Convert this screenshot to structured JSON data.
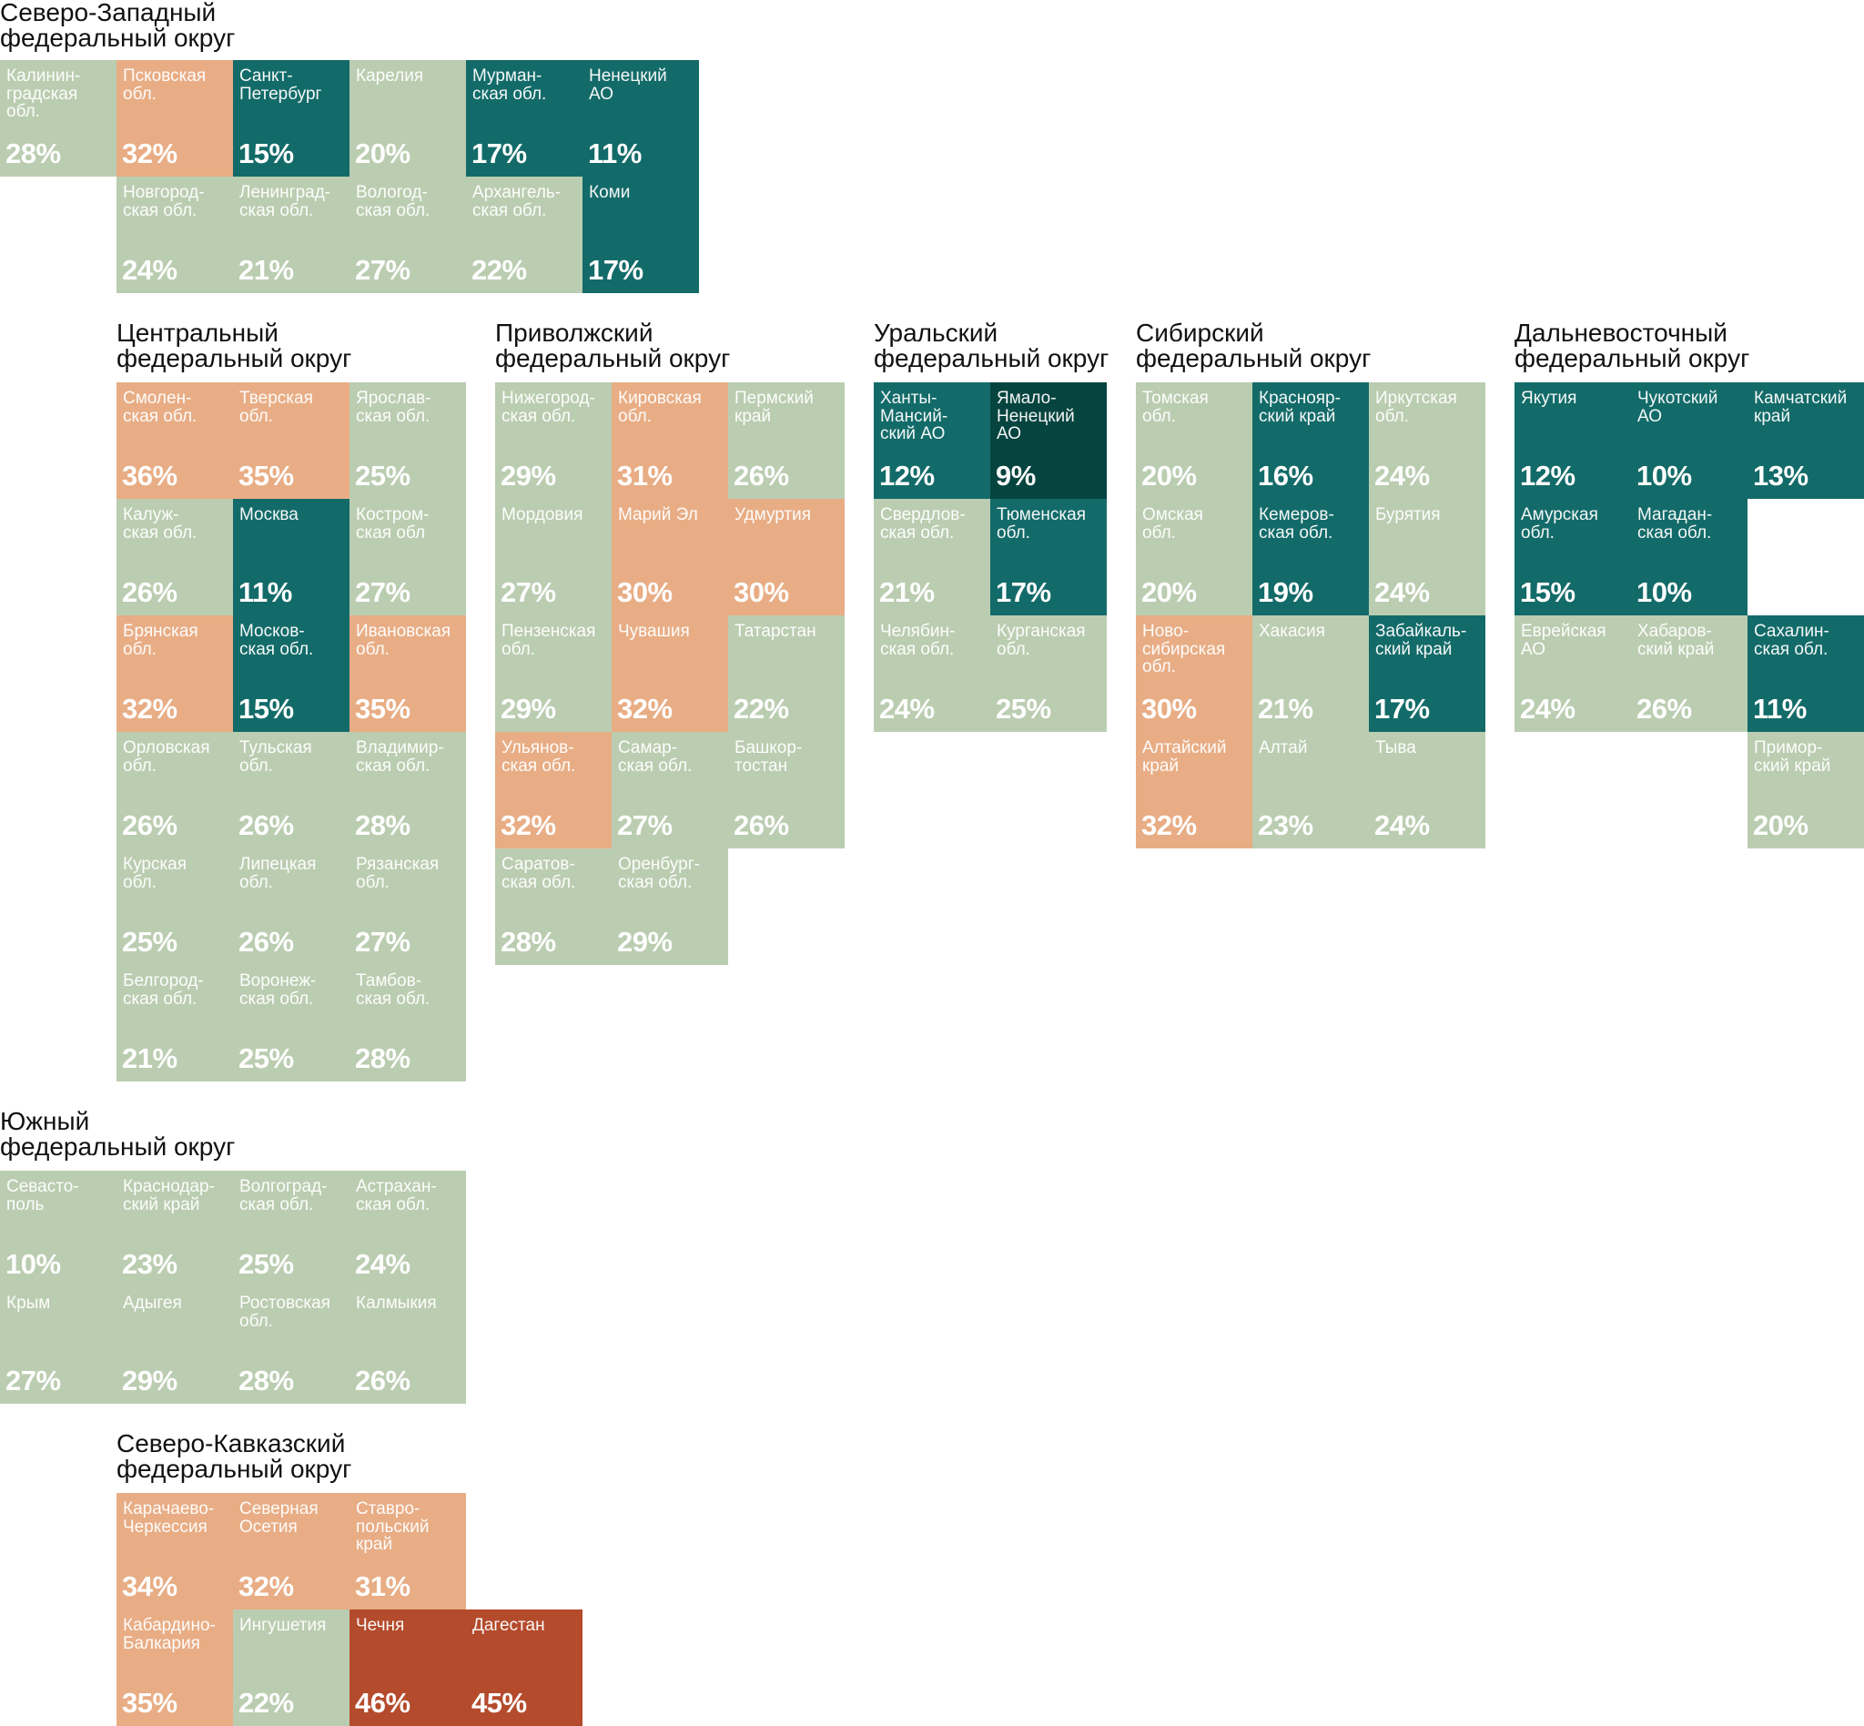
{
  "chart_data": {
    "type": "heatmap",
    "value_unit": "%",
    "colors": {
      "light": "#bbcdb1",
      "orange": "#e8ad85",
      "teal": "#136b69",
      "dark": "#06443f",
      "red": "#b44b2c"
    },
    "districts": [
      {
        "title": [
          "Северо-Западный",
          "федеральный округ"
        ],
        "regions": [
          {
            "name": "Калинин-\nградская\nобл.",
            "value": 28,
            "color": "light"
          },
          {
            "name": "Псковская\nобл.",
            "value": 32,
            "color": "orange"
          },
          {
            "name": "Санкт-\nПетербург",
            "value": 15,
            "color": "teal"
          },
          {
            "name": "Карелия",
            "value": 20,
            "color": "light"
          },
          {
            "name": "Мурман-\nская обл.",
            "value": 17,
            "color": "teal"
          },
          {
            "name": "Ненецкий\nАО",
            "value": 11,
            "color": "teal"
          },
          {
            "name": "Новгород-\nская обл.",
            "value": 24,
            "color": "light"
          },
          {
            "name": "Ленинград-\nская обл.",
            "value": 21,
            "color": "light"
          },
          {
            "name": "Вологод-\nская обл.",
            "value": 27,
            "color": "light"
          },
          {
            "name": "Архангель-\nская обл.",
            "value": 22,
            "color": "light"
          },
          {
            "name": "Коми",
            "value": 17,
            "color": "teal"
          }
        ]
      },
      {
        "title": [
          "Центральный",
          "федеральный округ"
        ],
        "regions": [
          {
            "name": "Смолен-\nская обл.",
            "value": 36,
            "color": "orange"
          },
          {
            "name": "Тверская\nобл.",
            "value": 35,
            "color": "orange"
          },
          {
            "name": "Ярослав-\nская обл.",
            "value": 25,
            "color": "light"
          },
          {
            "name": "Калуж-\nская обл.",
            "value": 26,
            "color": "light"
          },
          {
            "name": "Москва",
            "value": 11,
            "color": "teal"
          },
          {
            "name": "Костром-\nская обл",
            "value": 27,
            "color": "light"
          },
          {
            "name": "Брянская\nобл.",
            "value": 32,
            "color": "orange"
          },
          {
            "name": "Москов-\nская обл.",
            "value": 15,
            "color": "teal"
          },
          {
            "name": "Ивановская\nобл.",
            "value": 35,
            "color": "orange"
          },
          {
            "name": "Орловская\nобл.",
            "value": 26,
            "color": "light"
          },
          {
            "name": "Тульская\nобл.",
            "value": 26,
            "color": "light"
          },
          {
            "name": "Владимир-\nская обл.",
            "value": 28,
            "color": "light"
          },
          {
            "name": "Курская\nобл.",
            "value": 25,
            "color": "light"
          },
          {
            "name": "Липецкая\nобл.",
            "value": 26,
            "color": "light"
          },
          {
            "name": "Рязанская\nобл.",
            "value": 27,
            "color": "light"
          },
          {
            "name": "Белгород-\nская обл.",
            "value": 21,
            "color": "light"
          },
          {
            "name": "Воронеж-\nская обл.",
            "value": 25,
            "color": "light"
          },
          {
            "name": "Тамбов-\nская обл.",
            "value": 28,
            "color": "light"
          }
        ]
      },
      {
        "title": [
          "Приволжский",
          "федеральный округ"
        ],
        "regions": [
          {
            "name": "Нижегород-\nская обл.",
            "value": 29,
            "color": "light"
          },
          {
            "name": "Кировская\nобл.",
            "value": 31,
            "color": "orange"
          },
          {
            "name": "Пермский\nкрай",
            "value": 26,
            "color": "light"
          },
          {
            "name": "Мордовия",
            "value": 27,
            "color": "light"
          },
          {
            "name": "Марий Эл",
            "value": 30,
            "color": "orange"
          },
          {
            "name": "Удмуртия",
            "value": 30,
            "color": "orange"
          },
          {
            "name": "Пензенская\nобл.",
            "value": 29,
            "color": "light"
          },
          {
            "name": "Чувашия",
            "value": 32,
            "color": "orange"
          },
          {
            "name": "Татарстан",
            "value": 22,
            "color": "light"
          },
          {
            "name": "Ульянов-\nская обл.",
            "value": 32,
            "color": "orange"
          },
          {
            "name": "Самар-\nская обл.",
            "value": 27,
            "color": "light"
          },
          {
            "name": "Башкор-\nтостан",
            "value": 26,
            "color": "light"
          },
          {
            "name": "Саратов-\nская обл.",
            "value": 28,
            "color": "light"
          },
          {
            "name": "Оренбург-\nская обл.",
            "value": 29,
            "color": "light"
          }
        ]
      },
      {
        "title": [
          "Уральский",
          "федеральный округ"
        ],
        "regions": [
          {
            "name": "Ханты-\nМансий-\nский АО",
            "value": 12,
            "color": "teal"
          },
          {
            "name": "Ямало-\nНенецкий\nАО",
            "value": 9,
            "color": "dark"
          },
          {
            "name": "Свердлов-\nская обл.",
            "value": 21,
            "color": "light"
          },
          {
            "name": "Тюменская\nобл.",
            "value": 17,
            "color": "teal"
          },
          {
            "name": "Челябин-\nская обл.",
            "value": 24,
            "color": "light"
          },
          {
            "name": "Курганская\nобл.",
            "value": 25,
            "color": "light"
          }
        ]
      },
      {
        "title": [
          "Сибирский",
          "федеральный округ"
        ],
        "regions": [
          {
            "name": "Томская\nобл.",
            "value": 20,
            "color": "light"
          },
          {
            "name": "Краснояр-\nский край",
            "value": 16,
            "color": "teal"
          },
          {
            "name": "Иркутская\nобл.",
            "value": 24,
            "color": "light"
          },
          {
            "name": "Омская\nобл.",
            "value": 20,
            "color": "light"
          },
          {
            "name": "Кемеров-\nская обл.",
            "value": 19,
            "color": "teal"
          },
          {
            "name": "Бурятия",
            "value": 24,
            "color": "light"
          },
          {
            "name": "Ново-\nсибирская\nобл.",
            "value": 30,
            "color": "orange"
          },
          {
            "name": "Хакасия",
            "value": 21,
            "color": "light"
          },
          {
            "name": "Забайкаль-\nский край",
            "value": 17,
            "color": "teal"
          },
          {
            "name": "Алтайский\nкрай",
            "value": 32,
            "color": "orange"
          },
          {
            "name": "Алтай",
            "value": 23,
            "color": "light"
          },
          {
            "name": "Тыва",
            "value": 24,
            "color": "light"
          }
        ]
      },
      {
        "title": [
          "Дальневосточный",
          "федеральный округ"
        ],
        "regions": [
          {
            "name": "Якутия",
            "value": 12,
            "color": "teal"
          },
          {
            "name": "Чукотский\nАО",
            "value": 10,
            "color": "teal"
          },
          {
            "name": "Камчатский\nкрай",
            "value": 13,
            "color": "teal"
          },
          {
            "name": "Амурская\nобл.",
            "value": 15,
            "color": "teal"
          },
          {
            "name": "Магадан-\nская обл.",
            "value": 10,
            "color": "teal"
          },
          {
            "name": "Еврейская\nАО",
            "value": 24,
            "color": "light"
          },
          {
            "name": "Хабаров-\nский край",
            "value": 26,
            "color": "light"
          },
          {
            "name": "Сахалин-\nская обл.",
            "value": 11,
            "color": "teal"
          },
          {
            "name": "Примор-\nский край",
            "value": 20,
            "color": "light"
          }
        ]
      },
      {
        "title": [
          "Южный",
          "федеральный округ"
        ],
        "regions": [
          {
            "name": "Севасто-\nполь",
            "value": 10,
            "color": "light"
          },
          {
            "name": "Краснодар-\nский край",
            "value": 23,
            "color": "light"
          },
          {
            "name": "Волгоград-\nская обл.",
            "value": 25,
            "color": "light"
          },
          {
            "name": "Астрахан-\nская обл.",
            "value": 24,
            "color": "light"
          },
          {
            "name": "Крым",
            "value": 27,
            "color": "light"
          },
          {
            "name": "Адыгея",
            "value": 29,
            "color": "light"
          },
          {
            "name": "Ростовская\nобл.",
            "value": 28,
            "color": "light"
          },
          {
            "name": "Калмыкия",
            "value": 26,
            "color": "light"
          }
        ]
      },
      {
        "title": [
          "Северо-Кавказский",
          "федеральный округ"
        ],
        "regions": [
          {
            "name": "Карачаево-\nЧеркессия",
            "value": 34,
            "color": "orange"
          },
          {
            "name": "Северная\nОсетия",
            "value": 32,
            "color": "orange"
          },
          {
            "name": "Ставро-\nпольский\nкрай",
            "value": 31,
            "color": "orange"
          },
          {
            "name": "Кабардино-\nБалкария",
            "value": 35,
            "color": "orange"
          },
          {
            "name": "Ингушетия",
            "value": 22,
            "color": "light"
          },
          {
            "name": "Чечня",
            "value": 46,
            "color": "red"
          },
          {
            "name": "Дагестан",
            "value": 45,
            "color": "red"
          }
        ]
      }
    ]
  }
}
